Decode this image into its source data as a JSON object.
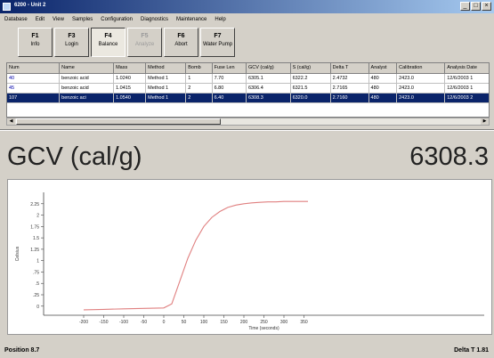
{
  "window": {
    "title": "6200 - Unit 2",
    "minimize_label": "_",
    "maximize_label": "□",
    "close_label": "×"
  },
  "menu": [
    "Database",
    "Edit",
    "View",
    "Samples",
    "Configuration",
    "Diagnostics",
    "Maintenance",
    "Help"
  ],
  "toolbar": [
    {
      "key": "F1",
      "label": "Info",
      "state": "normal"
    },
    {
      "key": "F3",
      "label": "Login",
      "state": "normal"
    },
    {
      "key": "F4",
      "label": "Balance",
      "state": "active"
    },
    {
      "key": "F5",
      "label": "Analyze",
      "state": "disabled"
    },
    {
      "key": "F6",
      "label": "Abort",
      "state": "normal"
    },
    {
      "key": "F7",
      "label": "Water Pump",
      "state": "normal"
    }
  ],
  "grid": {
    "columns": [
      "Num",
      "Name",
      "Mass",
      "Method",
      "Bomb",
      "Fuse Len",
      "GCV (cal/g)",
      "S (cal/g)",
      "Delta T",
      "Analyst",
      "Calibration",
      "Analysis Date"
    ],
    "rows": [
      {
        "cells": [
          "40",
          "benzoic acid",
          "1.0240",
          "Method 1",
          "1",
          "7.70",
          "6305.1",
          "6322.2",
          "2.4732",
          "480",
          "2423.0",
          "12/6/2003 1"
        ],
        "selected": false
      },
      {
        "cells": [
          "45",
          "benzoic acid",
          "1.0415",
          "Method 1",
          "2",
          "6.80",
          "6306.4",
          "6321.5",
          "2.7165",
          "480",
          "2423.0",
          "12/6/2003 1"
        ],
        "selected": false
      },
      {
        "cells": [
          "107",
          "benzoic aci",
          "1.0540",
          "Method 1",
          "2",
          "6.40",
          "6308.3",
          "6320.0",
          "2.7160",
          "480",
          "2423.0",
          "12/6/2003 2"
        ],
        "selected": true
      }
    ]
  },
  "readout": {
    "label": "GCV (cal/g)",
    "value": "6308.3"
  },
  "chart_data": {
    "type": "line",
    "xlabel": "Time (seconds)",
    "ylabel": "Celsius",
    "xlim": [
      -300,
      800
    ],
    "ylim": [
      -0.2,
      2.5
    ],
    "xticks": [
      -200,
      -150,
      -100,
      -50,
      0,
      50,
      100,
      150,
      200,
      250,
      300,
      350
    ],
    "yticks": [
      0,
      0.25,
      0.5,
      0.75,
      1,
      1.25,
      1.5,
      1.75,
      2,
      2.25
    ],
    "ytick_labels": [
      "0",
      ".25",
      ".5",
      ".75",
      "1",
      "1.25",
      "1.5",
      "1.75",
      "2",
      "2.25"
    ],
    "series": [
      {
        "color": "#e08080",
        "x": [
          -200,
          -150,
          -100,
          -50,
          0,
          20,
          40,
          60,
          80,
          100,
          120,
          140,
          160,
          180,
          200,
          220,
          240,
          260,
          280,
          300,
          320,
          340,
          360
        ],
        "y": [
          -0.08,
          -0.07,
          -0.06,
          -0.05,
          -0.04,
          0.05,
          0.55,
          1.05,
          1.45,
          1.75,
          1.95,
          2.08,
          2.17,
          2.22,
          2.25,
          2.27,
          2.28,
          2.29,
          2.29,
          2.3,
          2.3,
          2.3,
          2.3
        ]
      }
    ],
    "grid": false
  },
  "status": {
    "left": "Position 8.7",
    "right": "Delta T 1.81"
  }
}
